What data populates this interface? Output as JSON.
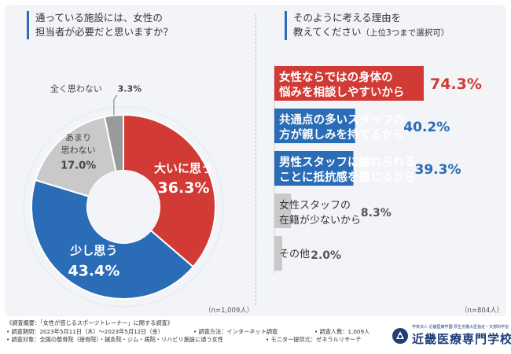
{
  "left_question": {
    "line1": "通っている施設には、女性の",
    "line2": "担当者が必要だと思いますか？"
  },
  "right_question": {
    "line1": "そのように考える理由を",
    "line2_main": "教えてください",
    "line2_small": "（上位3つまで選択可）"
  },
  "colors": {
    "red": "#d23a35",
    "blue": "#2a6cb6",
    "gray": "#c9c9c9",
    "darkgray": "#9a9a9a",
    "accent": "#2f6db4"
  },
  "chart_data": [
    {
      "type": "pie",
      "title": "通っている施設には、女性の担当者が必要だと思いますか？",
      "note": "（n=1,009人）",
      "slices": [
        {
          "label": "大いに思う",
          "value": 36.3,
          "value_text": "36.3%",
          "color": "#d23a35"
        },
        {
          "label": "少し思う",
          "value": 43.4,
          "value_text": "43.4%",
          "color": "#2a6cb6"
        },
        {
          "label": "あまり思わない",
          "value": 17.0,
          "value_text": "17.0%",
          "color": "#c9c9c9"
        },
        {
          "label": "全く思わない",
          "value": 3.3,
          "value_text": "3.3%",
          "color": "#9a9a9a"
        }
      ]
    },
    {
      "type": "bar",
      "title": "そのように考える理由を教えてください（上位3つまで選択可）",
      "note": "（n=804人）",
      "bars": [
        {
          "line1": "女性ならではの身体の",
          "line2": "悩みを相談しやすいから",
          "value": 74.3,
          "value_text": "74.3%",
          "color": "#d23a35"
        },
        {
          "line1": "共通点の多いスタッフの",
          "line2": "方が親しみを持てるから",
          "value": 40.2,
          "value_text": "40.2%",
          "color": "#2a6cb6"
        },
        {
          "line1": "男性スタッフに触れられる",
          "line2": "ことに抵抗感を感じるから",
          "value": 39.3,
          "value_text": "39.3%",
          "color": "#2a6cb6"
        },
        {
          "line1": "女性スタッフの",
          "line2": "在籍が少ないから",
          "value": 8.3,
          "value_text": "8.3%",
          "color": "#c9c9c9"
        },
        {
          "line1": "その他",
          "line2": "",
          "value": 2.0,
          "value_text": "2.0%",
          "color": "#c9c9c9"
        }
      ]
    }
  ],
  "footer": {
    "summary": "《調査概要：「女性が感じるスポーツトレーナー」に関する調査》",
    "period": "• 調査期間：2023年5月11日（木）〜2023年5月12日（金）",
    "method": "• 調査方法：インターネット調査",
    "count": "• 調査人数：1,009人",
    "target": "• 調査対象：全国の整骨院（接骨院）・鍼灸院・ジム・病院・リハビリ施設に通う女性",
    "provider": "• モニター提供元：ゼネラルリサーチ"
  },
  "logo": {
    "small": "学校法人 近畿医療学園 厚生労働大臣指定・文部科学省",
    "main": "近畿医療専門学校"
  }
}
